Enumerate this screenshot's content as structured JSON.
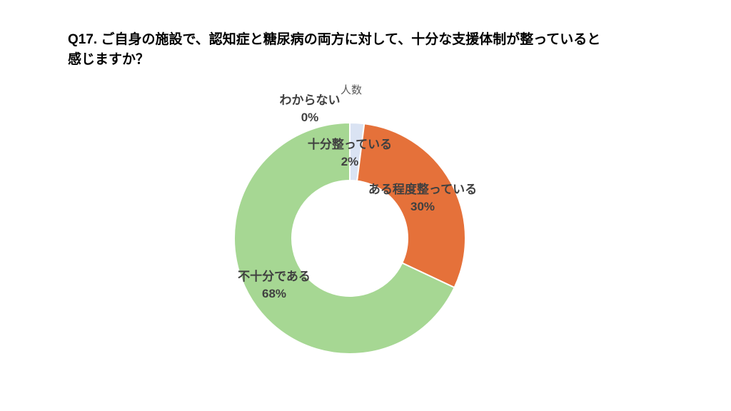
{
  "page": {
    "background": "#FFFFFF",
    "title": {
      "line1": "Q17. ご自身の施設で、認知症と糖尿病の両方に対して、十分な支援体制が整っていると",
      "line2": "感じますか？"
    }
  },
  "chart_data": {
    "type": "pie",
    "subtype": "doughnut",
    "series_name": "人数",
    "categories": [
      "十分整っている",
      "ある程度整っている",
      "不十分である",
      "わからない"
    ],
    "values_pct": [
      2,
      30,
      68,
      0
    ],
    "segments": [
      {
        "label": "十分整っている",
        "value_pct": 2,
        "pct_label": "2%",
        "color": "#DAE3F3"
      },
      {
        "label": "ある程度整っている",
        "value_pct": 30,
        "pct_label": "30%",
        "color": "#E5713A"
      },
      {
        "label": "不十分である",
        "value_pct": 68,
        "pct_label": "68%",
        "color": "#A6D793"
      },
      {
        "label": "わからない",
        "value_pct": 0,
        "pct_label": "0%",
        "color": null
      }
    ],
    "start_angle_deg": 0,
    "clockwise": true,
    "inner_radius_ratio": 0.5,
    "slice_border_color": "#FFFFFF",
    "label_color": "#404040",
    "series_name_color": "#595959",
    "legend": "none",
    "title": "人数"
  }
}
